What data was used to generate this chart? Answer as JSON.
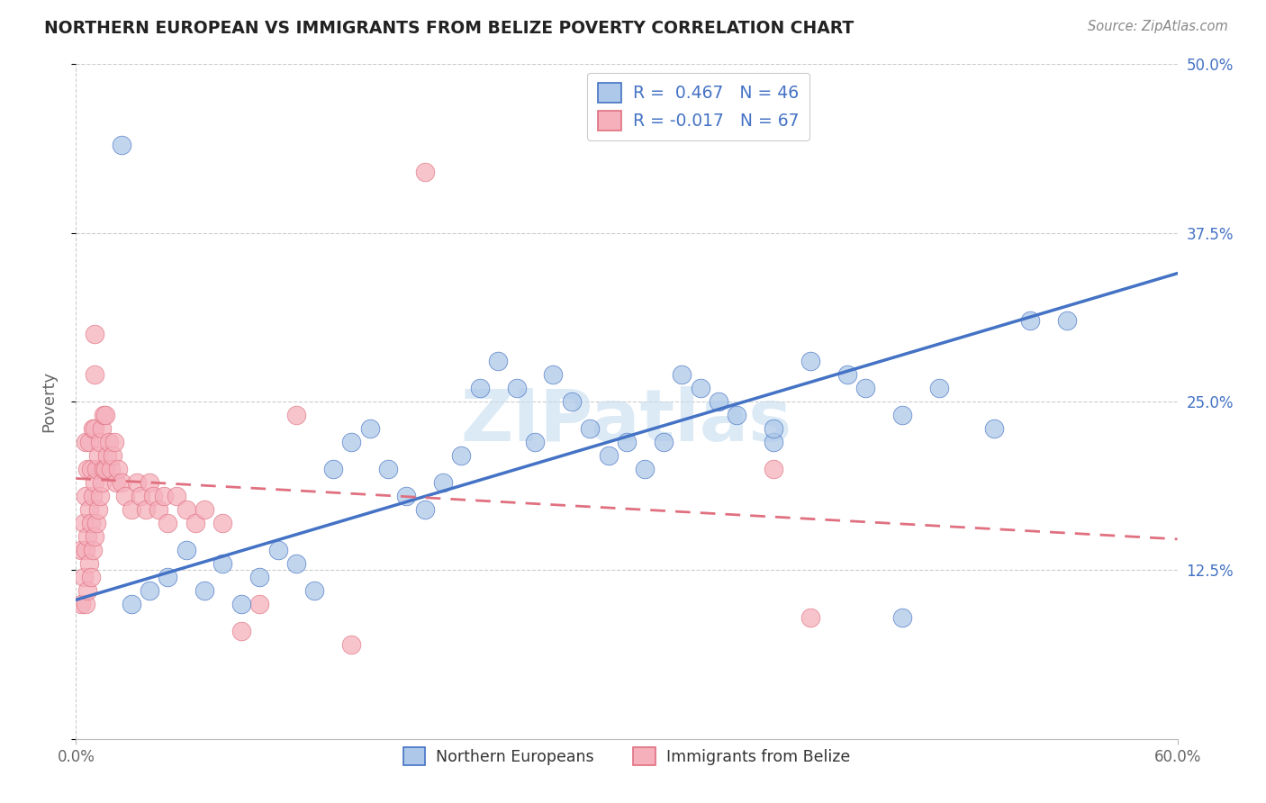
{
  "title": "NORTHERN EUROPEAN VS IMMIGRANTS FROM BELIZE POVERTY CORRELATION CHART",
  "source": "Source: ZipAtlas.com",
  "ylabel": "Poverty",
  "xmin": 0.0,
  "xmax": 0.6,
  "ymin": 0.0,
  "ymax": 0.5,
  "yticks": [
    0.0,
    0.125,
    0.25,
    0.375,
    0.5
  ],
  "ytick_labels": [
    "",
    "12.5%",
    "25.0%",
    "37.5%",
    "50.0%"
  ],
  "blue_R": 0.467,
  "blue_N": 46,
  "pink_R": -0.017,
  "pink_N": 67,
  "blue_color": "#adc8e8",
  "pink_color": "#f5b0bc",
  "blue_line_color": "#4472C4",
  "pink_line_color": "#E07080",
  "legend_label_blue": "Northern Europeans",
  "legend_label_pink": "Immigrants from Belize",
  "blue_scatter_x": [
    0.025,
    0.03,
    0.04,
    0.05,
    0.06,
    0.07,
    0.08,
    0.09,
    0.1,
    0.11,
    0.12,
    0.13,
    0.14,
    0.15,
    0.16,
    0.17,
    0.18,
    0.19,
    0.2,
    0.21,
    0.22,
    0.23,
    0.24,
    0.25,
    0.26,
    0.27,
    0.28,
    0.29,
    0.3,
    0.31,
    0.32,
    0.33,
    0.34,
    0.35,
    0.36,
    0.38,
    0.4,
    0.42,
    0.43,
    0.45,
    0.47,
    0.5,
    0.52,
    0.54,
    0.38,
    0.45
  ],
  "blue_scatter_y": [
    0.44,
    0.1,
    0.11,
    0.12,
    0.14,
    0.11,
    0.13,
    0.1,
    0.12,
    0.14,
    0.13,
    0.11,
    0.2,
    0.22,
    0.23,
    0.2,
    0.18,
    0.17,
    0.19,
    0.21,
    0.26,
    0.28,
    0.26,
    0.22,
    0.27,
    0.25,
    0.23,
    0.21,
    0.22,
    0.2,
    0.22,
    0.27,
    0.26,
    0.25,
    0.24,
    0.22,
    0.28,
    0.27,
    0.26,
    0.24,
    0.26,
    0.23,
    0.31,
    0.31,
    0.23,
    0.09
  ],
  "pink_scatter_x": [
    0.003,
    0.003,
    0.004,
    0.004,
    0.005,
    0.005,
    0.005,
    0.005,
    0.006,
    0.006,
    0.006,
    0.007,
    0.007,
    0.007,
    0.008,
    0.008,
    0.008,
    0.009,
    0.009,
    0.009,
    0.01,
    0.01,
    0.01,
    0.01,
    0.01,
    0.011,
    0.011,
    0.012,
    0.012,
    0.013,
    0.013,
    0.014,
    0.014,
    0.015,
    0.015,
    0.016,
    0.016,
    0.017,
    0.018,
    0.019,
    0.02,
    0.021,
    0.022,
    0.023,
    0.025,
    0.027,
    0.03,
    0.033,
    0.035,
    0.038,
    0.04,
    0.042,
    0.045,
    0.048,
    0.05,
    0.055,
    0.06,
    0.065,
    0.07,
    0.08,
    0.09,
    0.1,
    0.12,
    0.15,
    0.19,
    0.38,
    0.4
  ],
  "pink_scatter_y": [
    0.1,
    0.14,
    0.12,
    0.16,
    0.1,
    0.14,
    0.18,
    0.22,
    0.11,
    0.15,
    0.2,
    0.13,
    0.17,
    0.22,
    0.12,
    0.16,
    0.2,
    0.14,
    0.18,
    0.23,
    0.15,
    0.19,
    0.23,
    0.27,
    0.3,
    0.16,
    0.2,
    0.17,
    0.21,
    0.18,
    0.22,
    0.19,
    0.23,
    0.2,
    0.24,
    0.2,
    0.24,
    0.21,
    0.22,
    0.2,
    0.21,
    0.22,
    0.19,
    0.2,
    0.19,
    0.18,
    0.17,
    0.19,
    0.18,
    0.17,
    0.19,
    0.18,
    0.17,
    0.18,
    0.16,
    0.18,
    0.17,
    0.16,
    0.17,
    0.16,
    0.08,
    0.1,
    0.24,
    0.07,
    0.42,
    0.2,
    0.09
  ],
  "blue_trendline_x0": 0.0,
  "blue_trendline_y0": 0.103,
  "blue_trendline_x1": 0.6,
  "blue_trendline_y1": 0.345,
  "pink_trendline_x0": 0.0,
  "pink_trendline_y0": 0.193,
  "pink_trendline_x1": 0.6,
  "pink_trendline_y1": 0.148,
  "watermark_text": "ZIPatlas",
  "watermark_color": "#c5ddf0",
  "background_color": "#ffffff",
  "grid_color": "#cccccc"
}
